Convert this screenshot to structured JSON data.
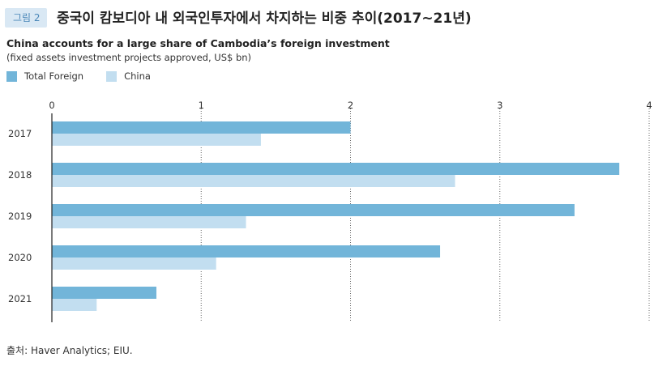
{
  "figure": {
    "tag": "그림 2",
    "title": "중국이 캄보디아 내 외국인투자에서 차지하는 비중 추이(2017~21년)"
  },
  "source": "출처: Haver Analytics; EIU.",
  "colors": {
    "total_foreign": "#72b5d9",
    "china": "#c2def0",
    "tag_bg": "#d9e8f4",
    "tag_text": "#4a87b8"
  },
  "chart_data": {
    "type": "bar",
    "orientation": "horizontal",
    "title": "China accounts for a large share of Cambodia’s foreign investment",
    "subtitle": "(fixed assets investment projects approved, US$ bn)",
    "categories": [
      "2017",
      "2018",
      "2019",
      "2020",
      "2021"
    ],
    "series": [
      {
        "name": "Total Foreign",
        "values": [
          2.0,
          3.8,
          3.5,
          2.6,
          0.7
        ]
      },
      {
        "name": "China",
        "values": [
          1.4,
          2.7,
          1.3,
          1.1,
          0.3
        ]
      }
    ],
    "xlim": [
      0,
      4
    ],
    "xticks": [
      "0",
      "1",
      "2",
      "3",
      "4"
    ],
    "grid": "vertical-dotted",
    "legend_position": "top-left"
  }
}
